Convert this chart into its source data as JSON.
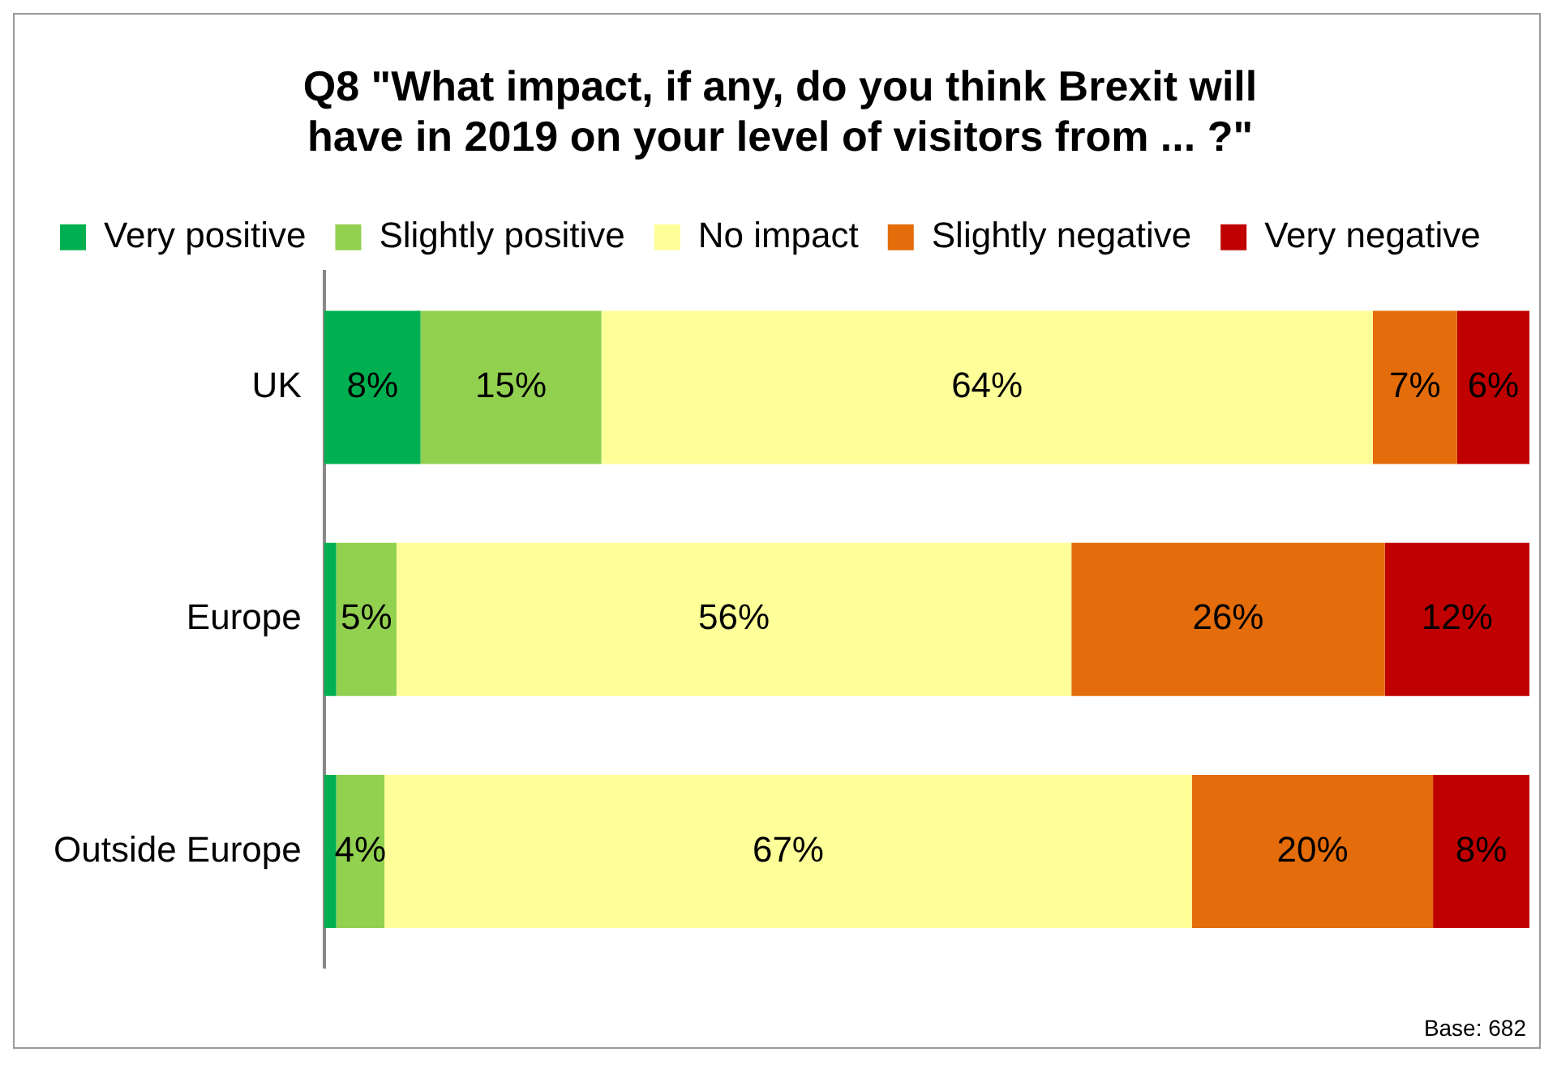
{
  "chart_data": {
    "type": "bar",
    "orientation": "horizontal",
    "stacked": true,
    "title": "Q8 \"What impact, if any, do you think Brexit will have in 2019 on your level of visitors from ... ?\"",
    "categories": [
      "UK",
      "Europe",
      "Outside Europe"
    ],
    "series": [
      {
        "name": "Very positive",
        "color": "#00b050",
        "values": [
          8,
          1,
          1
        ],
        "value_labels": [
          "8%",
          null,
          null
        ]
      },
      {
        "name": "Slightly positive",
        "color": "#92d050",
        "values": [
          15,
          5,
          4
        ],
        "value_labels": [
          "15%",
          "5%",
          "4%"
        ]
      },
      {
        "name": "No impact",
        "color": "#ffff99",
        "values": [
          64,
          56,
          67
        ],
        "value_labels": [
          "64%",
          "56%",
          "67%"
        ]
      },
      {
        "name": "Slightly negative",
        "color": "#e46c0a",
        "values": [
          7,
          26,
          20
        ],
        "value_labels": [
          "7%",
          "26%",
          "20%"
        ]
      },
      {
        "name": "Very negative",
        "color": "#c00000",
        "values": [
          6,
          12,
          8
        ],
        "value_labels": [
          "6%",
          "12%",
          "8%"
        ]
      }
    ],
    "xlim": [
      0,
      100
    ],
    "tick_labels": "y",
    "grid": false,
    "legend": "top",
    "annotations": [
      "Base: 682"
    ]
  }
}
